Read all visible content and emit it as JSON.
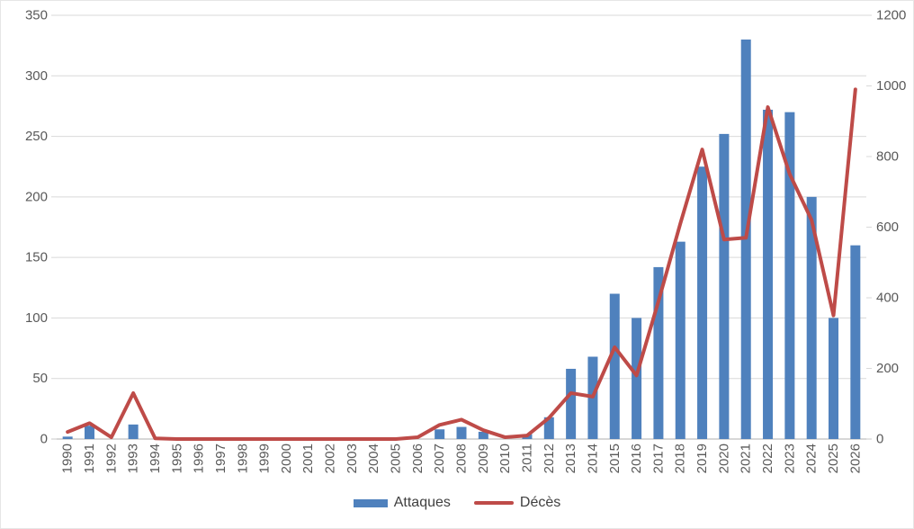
{
  "chart_data": {
    "type": "combo-bar-line",
    "title": "",
    "categories": [
      "1990",
      "1991",
      "1992",
      "1993",
      "1994",
      "1995",
      "1996",
      "1997",
      "1998",
      "1999",
      "2000",
      "2001",
      "2002",
      "2003",
      "2004",
      "2005",
      "2006",
      "2007",
      "2008",
      "2009",
      "2010",
      "2011",
      "2012",
      "2013",
      "2014",
      "2015",
      "2016",
      "2017",
      "2018",
      "2019",
      "2020",
      "2021",
      "2022",
      "2023",
      "2024",
      "2025",
      "2026"
    ],
    "series": [
      {
        "name": "Attaques",
        "type": "bar",
        "axis": "left",
        "color": "#4F81BD",
        "values": [
          2,
          11,
          0,
          12,
          0,
          0,
          0,
          1,
          0,
          0,
          0,
          0,
          0,
          0,
          0,
          0,
          0,
          8,
          10,
          6,
          0,
          4,
          18,
          58,
          68,
          120,
          100,
          142,
          163,
          225,
          252,
          330,
          272,
          270,
          200,
          100,
          160
        ]
      },
      {
        "name": "Décès",
        "type": "line",
        "axis": "right",
        "color": "#BE4B48",
        "values": [
          20,
          45,
          5,
          130,
          2,
          0,
          0,
          0,
          0,
          0,
          0,
          0,
          0,
          0,
          0,
          0,
          5,
          40,
          55,
          25,
          5,
          10,
          60,
          130,
          120,
          260,
          180,
          390,
          610,
          820,
          565,
          570,
          940,
          750,
          620,
          350,
          990
        ]
      }
    ],
    "axes": {
      "left": {
        "min": 0,
        "max": 350,
        "step": 50,
        "ticks": [
          0,
          50,
          100,
          150,
          200,
          250,
          300,
          350
        ]
      },
      "right": {
        "min": 0,
        "max": 1200,
        "step": 200,
        "ticks": [
          0,
          200,
          400,
          600,
          800,
          1000,
          1200
        ]
      }
    },
    "grid": true,
    "legend_position": "bottom",
    "x_labels_rotation_deg": -90
  },
  "colors": {
    "bar": "#4F81BD",
    "line": "#BE4B48",
    "gridline": "#D9D9D9",
    "axis_line": "#BFBFBF",
    "tick_label": "#595959",
    "legend_text": "#404040"
  }
}
